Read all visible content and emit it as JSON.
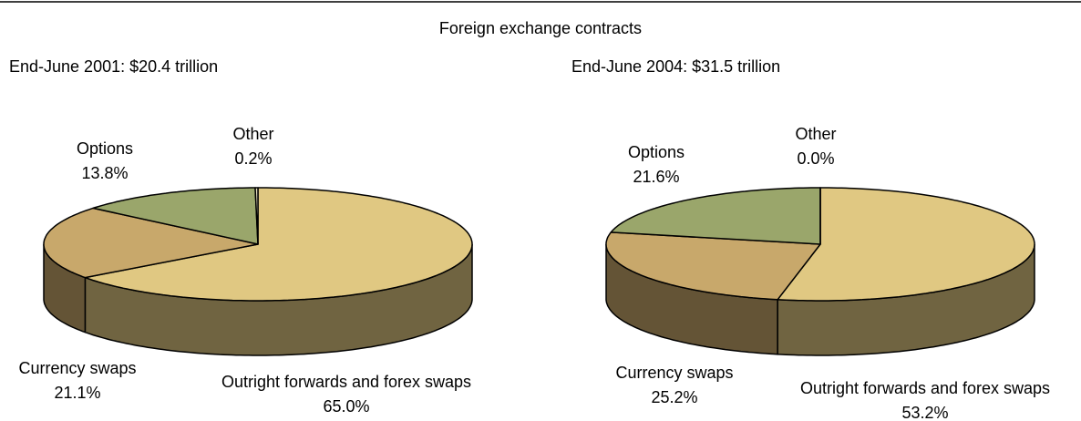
{
  "title": "Foreign exchange contracts",
  "chart_data": [
    {
      "type": "pie",
      "title": "End-June 2001: $20.4 trillion",
      "categories": [
        "Outright forwards and forex swaps",
        "Currency swaps",
        "Options",
        "Other"
      ],
      "values": [
        65.0,
        21.1,
        13.8,
        0.2
      ],
      "value_labels": [
        "65.0%",
        "21.1%",
        "13.8%",
        "0.2%"
      ],
      "colors": [
        "#e0c882",
        "#c8a86b",
        "#9aa66b",
        "#e8e0c0"
      ]
    },
    {
      "type": "pie",
      "title": "End-June 2004: $31.5 trillion",
      "categories": [
        "Outright forwards and forex swaps",
        "Currency swaps",
        "Options",
        "Other"
      ],
      "values": [
        53.2,
        25.2,
        21.6,
        0.0
      ],
      "value_labels": [
        "53.2%",
        "25.2%",
        "21.6%",
        "0.0%"
      ],
      "colors": [
        "#e0c882",
        "#c8a86b",
        "#9aa66b",
        "#e8e0c0"
      ]
    }
  ]
}
